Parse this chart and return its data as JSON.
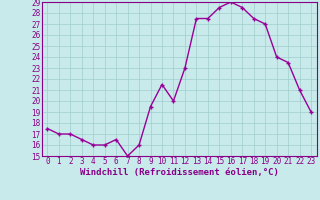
{
  "x": [
    0,
    1,
    2,
    3,
    4,
    5,
    6,
    7,
    8,
    9,
    10,
    11,
    12,
    13,
    14,
    15,
    16,
    17,
    18,
    19,
    20,
    21,
    22,
    23
  ],
  "y": [
    17.5,
    17.0,
    17.0,
    16.5,
    16.0,
    16.0,
    16.5,
    15.0,
    16.0,
    19.5,
    21.5,
    20.0,
    23.0,
    27.5,
    27.5,
    28.5,
    29.0,
    28.5,
    27.5,
    27.0,
    24.0,
    23.5,
    21.0,
    19.0
  ],
  "line_color": "#990099",
  "marker": "+",
  "marker_size": 3,
  "line_width": 1.0,
  "bg_color": "#c8eaea",
  "grid_color": "#a0cccc",
  "xlabel": "Windchill (Refroidissement éolien,°C)",
  "xlabel_color": "#880088",
  "xlabel_fontsize": 6.5,
  "ylim": [
    15,
    29
  ],
  "yticks": [
    15,
    16,
    17,
    18,
    19,
    20,
    21,
    22,
    23,
    24,
    25,
    26,
    27,
    28,
    29
  ],
  "xticks": [
    0,
    1,
    2,
    3,
    4,
    5,
    6,
    7,
    8,
    9,
    10,
    11,
    12,
    13,
    14,
    15,
    16,
    17,
    18,
    19,
    20,
    21,
    22,
    23
  ],
  "tick_fontsize": 5.5,
  "tick_color": "#880088",
  "spine_color": "#880088",
  "bottom_bar_color": "#7700aa"
}
